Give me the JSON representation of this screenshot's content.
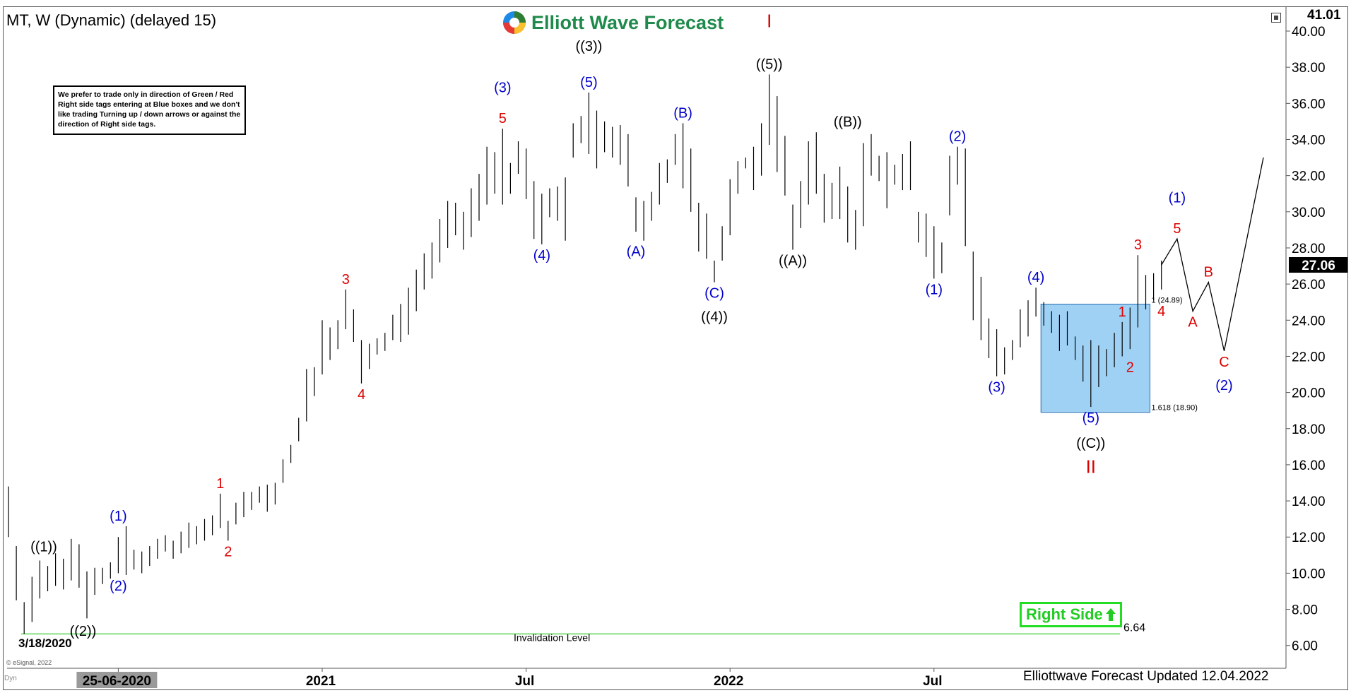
{
  "title": "MT, W (Dynamic) (delayed 15)",
  "brand": {
    "name": "Elliott Wave Forecast",
    "colors": [
      "#e53935",
      "#2e7d32",
      "#1e88e5",
      "#fbc02d"
    ]
  },
  "notice": "We prefer to trade only in direction of Green / Red Right side tags entering at Blue boxes and we don't like trading Turning up / down arrows or against the direction of Right side tags.",
  "right_side_label": "Right Side",
  "footer": "Elliottwave Forecast Updated 12.04.2022",
  "start_date_label": "3/18/2020",
  "esignal_label": "© eSignal, 2022",
  "dyn_label": "Dyn",
  "colors": {
    "up": "#000000",
    "blue_wave": "#0000cc",
    "red_wave": "#dd0000",
    "black_wave": "#000000",
    "blue_box": "#9fd1f5",
    "invalidation": "#33cc33",
    "right_side": "#22cc22"
  },
  "chart_data": {
    "type": "bar",
    "subtype": "ohlc-weekly",
    "ylim": [
      4.5,
      41.5
    ],
    "y_ticks": [
      "6.00",
      "8.00",
      "10.00",
      "12.00",
      "14.00",
      "16.00",
      "18.00",
      "20.00",
      "22.00",
      "24.00",
      "26.00",
      "28.00",
      "30.00",
      "32.00",
      "34.00",
      "36.00",
      "38.00",
      "40.00"
    ],
    "y_tick_values": [
      6,
      8,
      10,
      12,
      14,
      16,
      18,
      20,
      22,
      24,
      26,
      28,
      30,
      32,
      34,
      36,
      38,
      40
    ],
    "top_price_label": "41.01",
    "last_price_label": "27.06",
    "last_price": 27.06,
    "x_ticks": [
      "25-06-2020",
      "2021",
      "Jul",
      "2022",
      "Jul"
    ],
    "x_tick_week": [
      14,
      40,
      66,
      92,
      118
    ],
    "bars": [
      [
        0,
        14.8,
        12.0
      ],
      [
        1,
        11.5,
        8.5
      ],
      [
        2,
        8.4,
        6.64
      ],
      [
        3,
        9.8,
        7.3
      ],
      [
        4,
        10.7,
        8.6
      ],
      [
        5,
        10.4,
        9.0
      ],
      [
        6,
        11.1,
        9.3
      ],
      [
        7,
        10.8,
        9.1
      ],
      [
        8,
        11.9,
        9.6
      ],
      [
        9,
        11.6,
        9.2
      ],
      [
        10,
        10.1,
        7.5
      ],
      [
        11,
        10.3,
        8.8
      ],
      [
        12,
        10.3,
        9.4
      ],
      [
        13,
        10.6,
        9.7
      ],
      [
        14,
        12.0,
        10.0
      ],
      [
        15,
        12.6,
        9.9
      ],
      [
        16,
        11.3,
        10.2
      ],
      [
        17,
        11.2,
        10.0
      ],
      [
        18,
        11.5,
        10.4
      ],
      [
        19,
        11.9,
        10.8
      ],
      [
        20,
        12.1,
        11.2
      ],
      [
        21,
        11.8,
        10.8
      ],
      [
        22,
        12.3,
        11.1
      ],
      [
        23,
        12.8,
        11.4
      ],
      [
        24,
        12.6,
        11.6
      ],
      [
        25,
        13.0,
        11.8
      ],
      [
        26,
        13.2,
        12.1
      ],
      [
        27,
        14.4,
        12.5
      ],
      [
        28,
        12.9,
        11.8
      ],
      [
        29,
        13.9,
        12.7
      ],
      [
        30,
        14.5,
        13.1
      ],
      [
        31,
        14.5,
        13.5
      ],
      [
        32,
        14.8,
        13.9
      ],
      [
        33,
        14.9,
        13.4
      ],
      [
        34,
        15.0,
        13.8
      ],
      [
        35,
        16.3,
        15.0
      ],
      [
        36,
        17.1,
        16.1
      ],
      [
        37,
        18.6,
        17.3
      ],
      [
        38,
        21.3,
        18.4
      ],
      [
        39,
        21.4,
        19.8
      ],
      [
        40,
        24.0,
        21.0
      ],
      [
        41,
        23.6,
        21.8
      ],
      [
        42,
        24.0,
        22.4
      ],
      [
        43,
        25.7,
        23.5
      ],
      [
        44,
        24.6,
        22.8
      ],
      [
        45,
        22.9,
        20.5
      ],
      [
        46,
        22.7,
        21.3
      ],
      [
        47,
        23.0,
        22.1
      ],
      [
        48,
        23.3,
        22.3
      ],
      [
        49,
        24.3,
        22.9
      ],
      [
        50,
        24.9,
        22.8
      ],
      [
        51,
        25.8,
        23.2
      ],
      [
        52,
        26.8,
        24.5
      ],
      [
        53,
        27.7,
        25.7
      ],
      [
        54,
        28.3,
        26.3
      ],
      [
        55,
        29.6,
        27.2
      ],
      [
        56,
        30.6,
        28.0
      ],
      [
        57,
        30.5,
        28.7
      ],
      [
        58,
        30.0,
        27.9
      ],
      [
        59,
        31.3,
        28.6
      ],
      [
        60,
        32.1,
        29.5
      ],
      [
        61,
        33.6,
        30.4
      ],
      [
        62,
        33.3,
        31.0
      ],
      [
        63,
        34.6,
        30.4
      ],
      [
        64,
        32.7,
        31.0
      ],
      [
        65,
        33.9,
        32.1
      ],
      [
        66,
        33.5,
        30.7
      ],
      [
        67,
        31.7,
        28.5
      ],
      [
        68,
        31.0,
        28.2
      ],
      [
        69,
        31.3,
        29.7
      ],
      [
        70,
        31.4,
        29.5
      ],
      [
        71,
        31.9,
        28.4
      ],
      [
        72,
        34.9,
        33.0
      ],
      [
        73,
        35.3,
        33.8
      ],
      [
        74,
        36.6,
        33.2
      ],
      [
        75,
        35.6,
        32.4
      ],
      [
        76,
        35.0,
        33.3
      ],
      [
        77,
        34.7,
        33.0
      ],
      [
        78,
        34.8,
        32.6
      ],
      [
        79,
        34.3,
        31.4
      ],
      [
        80,
        30.8,
        28.9
      ],
      [
        81,
        30.6,
        28.4
      ],
      [
        82,
        31.1,
        29.5
      ],
      [
        83,
        32.7,
        30.4
      ],
      [
        84,
        32.9,
        31.6
      ],
      [
        85,
        34.3,
        32.6
      ],
      [
        86,
        34.9,
        31.3
      ],
      [
        87,
        33.5,
        30.0
      ],
      [
        88,
        30.5,
        27.8
      ],
      [
        89,
        29.9,
        27.4
      ],
      [
        90,
        27.3,
        26.1
      ],
      [
        91,
        29.2,
        27.3
      ],
      [
        92,
        31.8,
        28.7
      ],
      [
        93,
        32.8,
        31.0
      ],
      [
        94,
        33.0,
        32.4
      ],
      [
        95,
        33.6,
        31.2
      ],
      [
        96,
        34.9,
        32.0
      ],
      [
        97,
        37.6,
        33.7
      ],
      [
        98,
        36.4,
        32.2
      ],
      [
        99,
        34.2,
        30.9
      ],
      [
        100,
        30.4,
        27.9
      ],
      [
        101,
        31.7,
        29.1
      ],
      [
        102,
        33.9,
        30.4
      ],
      [
        103,
        34.4,
        31.0
      ],
      [
        104,
        32.1,
        29.4
      ],
      [
        105,
        31.6,
        29.6
      ],
      [
        106,
        32.5,
        29.6
      ],
      [
        107,
        31.4,
        28.3
      ],
      [
        108,
        30.1,
        27.9
      ],
      [
        109,
        33.8,
        29.2
      ],
      [
        110,
        34.3,
        32.0
      ],
      [
        111,
        33.1,
        31.7
      ],
      [
        112,
        33.3,
        30.2
      ],
      [
        113,
        32.6,
        31.5
      ],
      [
        114,
        33.2,
        31.2
      ],
      [
        115,
        33.9,
        31.2
      ],
      [
        116,
        30.0,
        28.3
      ],
      [
        117,
        29.9,
        27.5
      ],
      [
        118,
        29.2,
        26.3
      ],
      [
        119,
        28.3,
        26.6
      ],
      [
        120,
        33.1,
        29.8
      ],
      [
        121,
        33.6,
        31.5
      ],
      [
        122,
        33.5,
        28.1
      ],
      [
        123,
        27.8,
        24.0
      ],
      [
        124,
        26.4,
        22.9
      ],
      [
        125,
        24.1,
        21.9
      ],
      [
        126,
        23.5,
        20.9
      ],
      [
        127,
        22.5,
        21.0
      ],
      [
        128,
        22.9,
        21.8
      ],
      [
        129,
        24.6,
        22.5
      ],
      [
        130,
        25.1,
        23.1
      ],
      [
        131,
        25.8,
        24.2
      ],
      [
        132,
        25.0,
        23.7
      ],
      [
        133,
        24.5,
        23.3
      ],
      [
        134,
        24.3,
        22.3
      ],
      [
        135,
        24.5,
        22.6
      ],
      [
        136,
        23.1,
        21.8
      ],
      [
        137,
        22.6,
        20.6
      ],
      [
        138,
        22.9,
        19.2
      ],
      [
        139,
        22.6,
        20.3
      ],
      [
        140,
        22.4,
        20.9
      ],
      [
        141,
        23.3,
        21.4
      ],
      [
        142,
        23.9,
        22.0
      ],
      [
        143,
        24.7,
        22.4
      ],
      [
        144,
        27.6,
        23.6
      ],
      [
        145,
        26.5,
        24.6
      ],
      [
        146,
        26.6,
        25.1
      ],
      [
        147,
        27.3,
        25.7
      ]
    ],
    "projection": [
      [
        147,
        27.06
      ],
      [
        149,
        28.5
      ],
      [
        151,
        24.5
      ],
      [
        153,
        26.1
      ],
      [
        155,
        22.3
      ],
      [
        160,
        33.0
      ]
    ],
    "invalidation": {
      "value": 6.64,
      "value_label": "6.64",
      "label": "Invalidation Level"
    },
    "blue_box": {
      "from_week": 132,
      "to_week": 145,
      "high": 24.89,
      "low": 18.9,
      "high_label": "1 (24.89)",
      "low_label": "1.618 (18.90)"
    },
    "wave_labels": [
      {
        "text": "((1))",
        "week": 4.5,
        "price": 10.9,
        "color": "black_wave",
        "pos": "above"
      },
      {
        "text": "((2))",
        "week": 9.5,
        "price": 7.4,
        "color": "black_wave",
        "pos": "below"
      },
      {
        "text": "(1)",
        "week": 14,
        "price": 12.6,
        "color": "blue_wave",
        "pos": "above"
      },
      {
        "text": "(2)",
        "week": 14,
        "price": 9.9,
        "color": "blue_wave",
        "pos": "below"
      },
      {
        "text": "1",
        "week": 27,
        "price": 14.4,
        "color": "red_wave",
        "pos": "above"
      },
      {
        "text": "2",
        "week": 28,
        "price": 11.8,
        "color": "red_wave",
        "pos": "below"
      },
      {
        "text": "3",
        "week": 43,
        "price": 25.7,
        "color": "red_wave",
        "pos": "above"
      },
      {
        "text": "4",
        "week": 45,
        "price": 20.5,
        "color": "red_wave",
        "pos": "below"
      },
      {
        "text": "(3)",
        "week": 63,
        "price": 36.3,
        "color": "blue_wave",
        "pos": "above"
      },
      {
        "text": "5",
        "week": 63,
        "price": 34.6,
        "color": "red_wave",
        "pos": "above"
      },
      {
        "text": "(4)",
        "week": 68,
        "price": 28.2,
        "color": "blue_wave",
        "pos": "below"
      },
      {
        "text": "((3))",
        "week": 74,
        "price": 38.6,
        "color": "black_wave",
        "pos": "above"
      },
      {
        "text": "(5)",
        "week": 74,
        "price": 36.6,
        "color": "blue_wave",
        "pos": "above"
      },
      {
        "text": "(A)",
        "week": 80,
        "price": 28.4,
        "color": "blue_wave",
        "pos": "below"
      },
      {
        "text": "(B)",
        "week": 86,
        "price": 34.9,
        "color": "blue_wave",
        "pos": "above"
      },
      {
        "text": "(C)",
        "week": 90,
        "price": 26.1,
        "color": "blue_wave",
        "pos": "below"
      },
      {
        "text": "((4))",
        "week": 90,
        "price": 24.8,
        "color": "black_wave",
        "pos": "below"
      },
      {
        "text": "I",
        "week": 97,
        "price": 39.9,
        "color": "red_wave",
        "pos": "above"
      },
      {
        "text": "((5))",
        "week": 97,
        "price": 37.6,
        "color": "black_wave",
        "pos": "above"
      },
      {
        "text": "((A))",
        "week": 100,
        "price": 27.9,
        "color": "black_wave",
        "pos": "below"
      },
      {
        "text": "((B))",
        "week": 107,
        "price": 34.4,
        "color": "black_wave",
        "pos": "above"
      },
      {
        "text": "(1)",
        "week": 118,
        "price": 26.3,
        "color": "blue_wave",
        "pos": "below"
      },
      {
        "text": "(2)",
        "week": 121,
        "price": 33.6,
        "color": "blue_wave",
        "pos": "above"
      },
      {
        "text": "(3)",
        "week": 126,
        "price": 20.9,
        "color": "blue_wave",
        "pos": "below"
      },
      {
        "text": "(4)",
        "week": 131,
        "price": 25.8,
        "color": "blue_wave",
        "pos": "above"
      },
      {
        "text": "1",
        "week": 142,
        "price": 23.9,
        "color": "red_wave",
        "pos": "above"
      },
      {
        "text": "2",
        "week": 143,
        "price": 22.0,
        "color": "red_wave",
        "pos": "below"
      },
      {
        "text": "(5)",
        "week": 138,
        "price": 19.2,
        "color": "blue_wave",
        "pos": "below"
      },
      {
        "text": "((C))",
        "week": 138,
        "price": 17.8,
        "color": "black_wave",
        "pos": "below"
      },
      {
        "text": "II",
        "week": 138,
        "price": 16.4,
        "color": "red_wave",
        "pos": "below"
      },
      {
        "text": "3",
        "week": 144,
        "price": 27.6,
        "color": "red_wave",
        "pos": "above"
      },
      {
        "text": "4",
        "week": 147,
        "price": 25.1,
        "color": "red_wave",
        "pos": "below"
      },
      {
        "text": "(1)",
        "week": 149,
        "price": 30.2,
        "color": "blue_wave",
        "pos": "above"
      },
      {
        "text": "5",
        "week": 149,
        "price": 28.5,
        "color": "red_wave",
        "pos": "above"
      },
      {
        "text": "A",
        "week": 151,
        "price": 24.5,
        "color": "red_wave",
        "pos": "below"
      },
      {
        "text": "B",
        "week": 153,
        "price": 26.1,
        "color": "red_wave",
        "pos": "above"
      },
      {
        "text": "C",
        "week": 155,
        "price": 22.3,
        "color": "red_wave",
        "pos": "below"
      },
      {
        "text": "(2)",
        "week": 155,
        "price": 21.0,
        "color": "blue_wave",
        "pos": "below"
      }
    ]
  }
}
